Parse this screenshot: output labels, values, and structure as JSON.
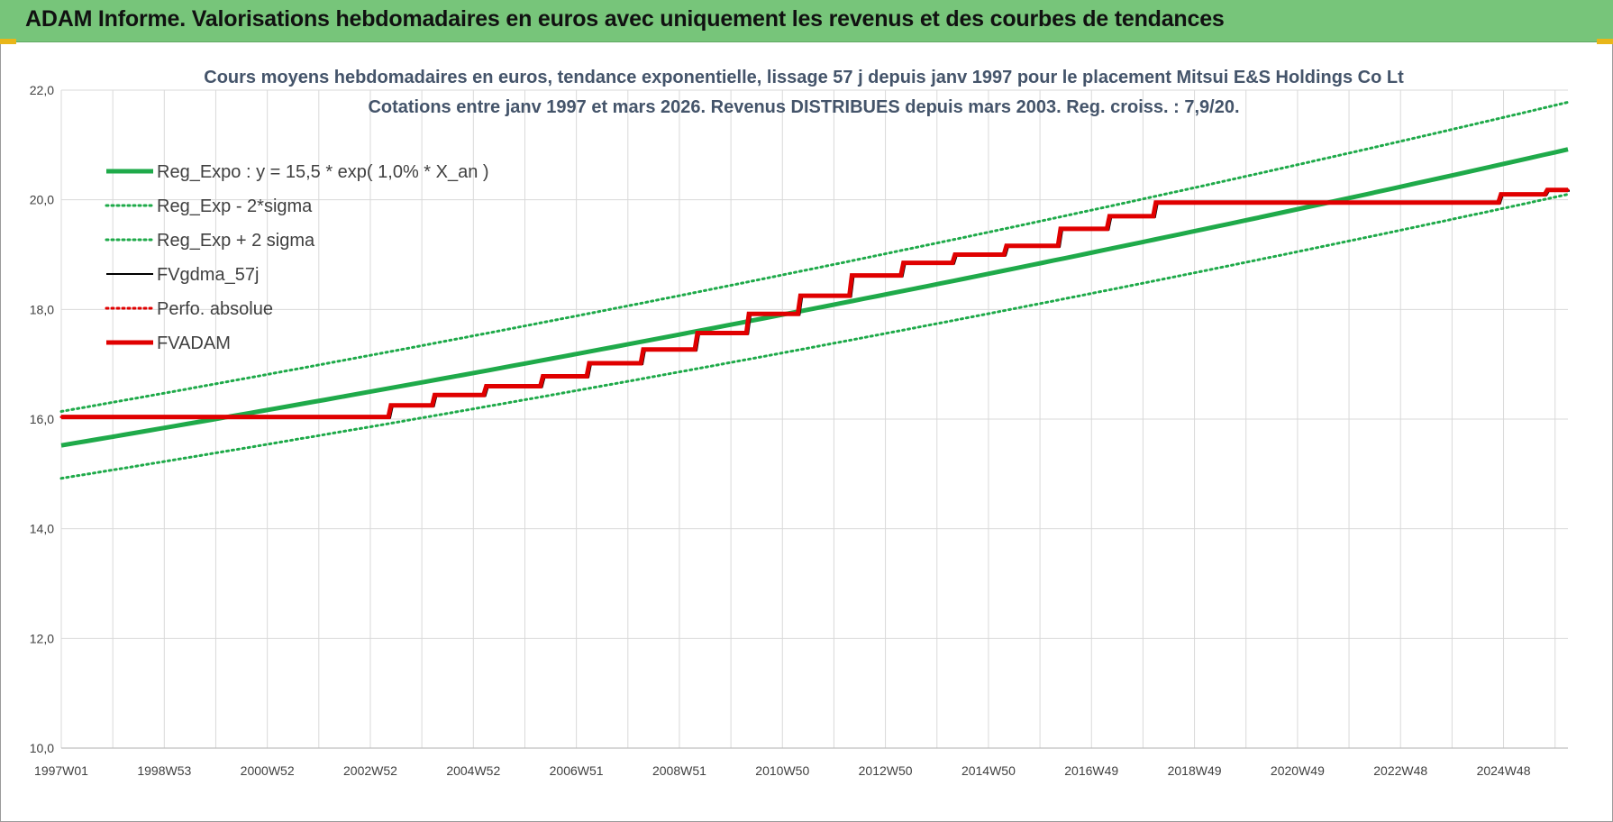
{
  "header": {
    "title": "ADAM Informe. Valorisations hebdomadaires en euros avec uniquement les revenus et des courbes de tendances"
  },
  "colors": {
    "banner": "#77c57a",
    "reg_expo": "#1faa4a",
    "sigma": "#1faa4a",
    "fvgdma": "#000000",
    "perfo": "#e00000",
    "fvadam": "#e00000",
    "grid": "#d9d9d9"
  },
  "chart_data": {
    "type": "line",
    "title_lines": [
      "Cours moyens hebdomadaires en euros, tendance exponentielle, lissage 57 j depuis janv 1997 pour le placement Mitsui E&S Holdings Co Lt",
      "Cotations entre janv 1997 et mars 2026. Revenus DISTRIBUES depuis mars 2003. Reg. croiss. : 7,9/20."
    ],
    "x_tick_labels": [
      "1997W01",
      "1998W53",
      "2000W52",
      "2002W52",
      "2004W52",
      "2006W51",
      "2008W51",
      "2010W50",
      "2012W50",
      "2014W50",
      "2016W49",
      "2018W49",
      "2020W49",
      "2022W48",
      "2024W48"
    ],
    "x_tick_years": [
      1997.0,
      1999.0,
      2001.0,
      2003.0,
      2005.0,
      2007.0,
      2009.0,
      2011.0,
      2013.0,
      2015.0,
      2017.0,
      2019.0,
      2021.0,
      2023.0,
      2025.0
    ],
    "x_range": [
      1997.0,
      2026.25
    ],
    "ylim": [
      10.0,
      22.0
    ],
    "y_ticks": [
      "10,0",
      "12,0",
      "14,0",
      "16,0",
      "18,0",
      "20,0",
      "22,0"
    ],
    "y_tick_values": [
      10,
      12,
      14,
      16,
      18,
      20,
      22
    ],
    "legend": [
      {
        "key": "reg_expo",
        "label": "Reg_Expo : y = 15,5 * exp( 1,0% *  X_an )",
        "style": "solid-thick",
        "color": "#1faa4a"
      },
      {
        "key": "reg_minus",
        "label": "Reg_Exp - 2*sigma",
        "style": "dotted",
        "color": "#1faa4a"
      },
      {
        "key": "reg_plus",
        "label": "Reg_Exp + 2 sigma",
        "style": "dotted",
        "color": "#1faa4a"
      },
      {
        "key": "fvgdma",
        "label": "FVgdma_57j",
        "style": "solid",
        "color": "#000000"
      },
      {
        "key": "perfo",
        "label": "Perfo. absolue",
        "style": "dotted",
        "color": "#e00000"
      },
      {
        "key": "fvadam",
        "label": "FVADAM",
        "style": "solid-thick",
        "color": "#e00000"
      }
    ],
    "series": [
      {
        "key": "reg_expo",
        "x": [
          1997.0,
          2026.25
        ],
        "y": [
          15.52,
          20.92
        ],
        "curve": "exp"
      },
      {
        "key": "reg_minus",
        "x": [
          1997.0,
          2026.25
        ],
        "y": [
          14.92,
          20.1
        ],
        "curve": "exp"
      },
      {
        "key": "reg_plus",
        "x": [
          1997.0,
          2026.25
        ],
        "y": [
          16.14,
          21.78
        ],
        "curve": "exp"
      },
      {
        "key": "fvadam",
        "type": "step",
        "x": [
          1997.0,
          2002.9,
          2003.35,
          2004.2,
          2005.2,
          2006.3,
          2007.2,
          2008.25,
          2009.3,
          2010.3,
          2011.3,
          2012.3,
          2013.3,
          2014.3,
          2015.3,
          2016.35,
          2017.3,
          2018.2,
          2024.4,
          2024.9,
          2025.8,
          2026.25
        ],
        "y": [
          16.04,
          16.04,
          16.25,
          16.44,
          16.6,
          16.78,
          17.02,
          17.27,
          17.57,
          17.92,
          18.25,
          18.62,
          18.85,
          19.0,
          19.16,
          19.47,
          19.7,
          19.95,
          19.95,
          20.1,
          20.18,
          20.18
        ]
      }
    ]
  }
}
